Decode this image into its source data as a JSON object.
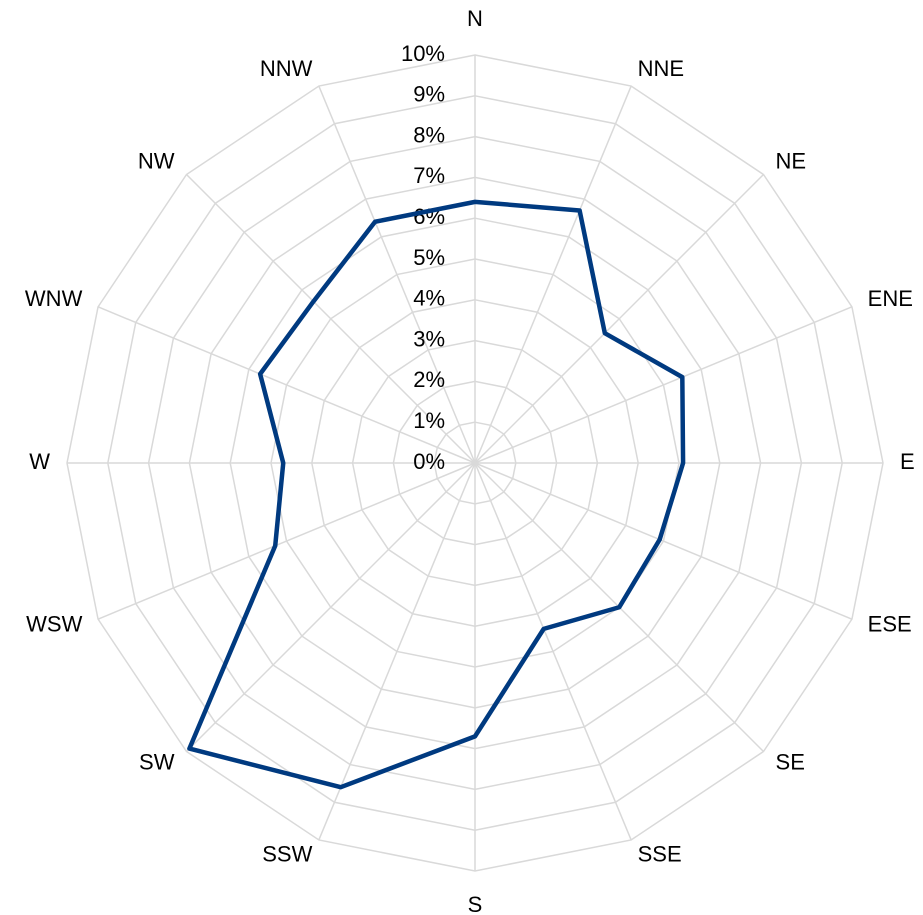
{
  "chart_data": {
    "type": "radar",
    "categories": [
      "N",
      "NNE",
      "NE",
      "ENE",
      "E",
      "ESE",
      "SE",
      "SSE",
      "S",
      "SSW",
      "SW",
      "WSW",
      "W",
      "WNW",
      "NW",
      "NNW"
    ],
    "values": [
      6.4,
      6.7,
      4.5,
      5.5,
      5.1,
      4.9,
      5.0,
      4.4,
      6.7,
      8.6,
      9.9,
      5.3,
      4.7,
      5.7,
      5.6,
      6.4
    ],
    "color": "#003a80",
    "ylim": [
      0,
      10
    ],
    "yticks": [
      {
        "value": 0,
        "label": "0%"
      },
      {
        "value": 1,
        "label": "1%"
      },
      {
        "value": 2,
        "label": "2%"
      },
      {
        "value": 3,
        "label": "3%"
      },
      {
        "value": 4,
        "label": "4%"
      },
      {
        "value": 5,
        "label": "5%"
      },
      {
        "value": 6,
        "label": "6%"
      },
      {
        "value": 7,
        "label": "7%"
      },
      {
        "value": 8,
        "label": "8%"
      },
      {
        "value": 9,
        "label": "9%"
      },
      {
        "value": 10,
        "label": "10%"
      }
    ],
    "grid": true
  }
}
